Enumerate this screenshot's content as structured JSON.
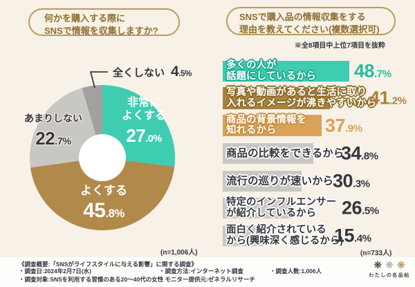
{
  "page": {
    "background": "#f7f1e7",
    "footer_background": "#fdfdfb"
  },
  "left_panel": {
    "title_lines": [
      "何かを購入する際に",
      "SNSで情報を収集しますか?"
    ],
    "sample_note": "(n=1,006人)"
  },
  "right_panel": {
    "title_lines": [
      "SNSで購入品の情報収集をする",
      "理由を教えてください(複数選択可)"
    ],
    "excerpt_note": "※全8項目中上位7項目を抜粋",
    "sample_note": "(n=733人)"
  },
  "chart_data": [
    {
      "type": "pie",
      "donut": true,
      "title": "何かを購入する際にSNSで情報を収集しますか?",
      "sample_size": "n=1,006人",
      "segments": [
        {
          "label": "非常によくする",
          "label_lines": [
            "非常に",
            "よくする"
          ],
          "value": 27.0,
          "color": "#3fcdb2"
        },
        {
          "label": "よくする",
          "value": 45.8,
          "color": "#b1894a"
        },
        {
          "label": "あまりしない",
          "value": 22.7,
          "color": "#c9c7c4"
        },
        {
          "label": "全くしない",
          "value": 4.5,
          "color": "#a3a19e"
        }
      ]
    },
    {
      "type": "bar",
      "orientation": "horizontal",
      "title": "SNSで購入品の情報収集をする理由を教えてください(複数選択可)",
      "sample_size": "n=733人",
      "xlim": [
        0,
        50
      ],
      "categories": [
        "多くの人が話題にしているから",
        "写真や動画があると生活に取り入れるイメージが沸きやすいから",
        "商品の背景情報を知れるから",
        "商品の比較をできるから",
        "流行の巡りが速いから",
        "特定のインフルエンサーが紹介しているから",
        "面白く紹介されているから(興味深く感じるから)"
      ],
      "values": [
        48.7,
        41.2,
        37.9,
        34.8,
        30.3,
        26.5,
        15.4
      ],
      "bars": [
        {
          "label_lines": [
            "多くの人が",
            "話題にしているから"
          ],
          "value": 48.7,
          "color": "#3fcdb2",
          "outline": "#18a98c",
          "pct_color": "#25bda0",
          "label_style": "light"
        },
        {
          "label_lines": [
            "写真や動画があると生活に取り",
            "入れるイメージが沸きやすいから"
          ],
          "value": 41.2,
          "color": "#a9823e",
          "outline": "#8a6827",
          "pct_color": "#a9823e",
          "label_style": "light"
        },
        {
          "label_lines": [
            "商品の背景情報を",
            "知れるから"
          ],
          "value": 37.9,
          "color": "#d9a256",
          "outline": "#c68e3c",
          "pct_color": "#d9a256",
          "label_style": "light"
        },
        {
          "label_lines": [
            "商品の比較をできるから"
          ],
          "value": 34.8,
          "color": "#c9c7c4",
          "outline": "#ffffff",
          "pct_color": "#35353e",
          "label_style": "dark"
        },
        {
          "label_lines": [
            "流行の巡りが速いから"
          ],
          "value": 30.3,
          "color": "#c9c7c4",
          "outline": "#ffffff",
          "pct_color": "#35353e",
          "label_style": "dark"
        },
        {
          "label_lines": [
            "特定のインフルエンサー",
            "が紹介しているから"
          ],
          "value": 26.5,
          "color": "#c9c7c4",
          "outline": "#ffffff",
          "pct_color": "#35353e",
          "label_style": "dark"
        },
        {
          "label_lines": [
            "面白く紹介されている",
            "から(興味深く感じるから)"
          ],
          "value": 15.4,
          "color": "#c9c7c4",
          "outline": "#ffffff",
          "pct_color": "#35353e",
          "label_style": "dark"
        }
      ]
    }
  ],
  "footer": {
    "heading": "《調査概要:「SNSがライフスタイルに与える影響」に関する調査》",
    "col1": [
      "・調査日:2024年2月7日(水)",
      "・調査対象:SNSを利用する習慣のある20〜40代の女性"
    ],
    "col2": [
      "・調査方法:インターネット調査",
      "・モニター提供元:ゼネラルリサーチ"
    ],
    "col3": [
      "・調査人数:1,006人"
    ],
    "logo": {
      "text": "わたしの名品帖",
      "mark_colors": [
        "#2e2a26",
        "#a7a7a5",
        "#ad873d"
      ]
    }
  },
  "colors": {
    "accent_teal": "#3fcdb2",
    "accent_gold": "#a9823e",
    "accent_tan": "#d9a256",
    "neutral_gray": "#c9c7c4",
    "dark_gray": "#a3a19e",
    "title_text": "#8e6f2f",
    "bubble_border": "#b99b5e",
    "text_dark": "#35353e"
  }
}
